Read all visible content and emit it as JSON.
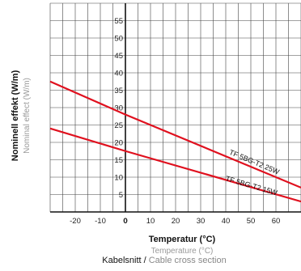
{
  "chart_data": {
    "type": "line",
    "xlim": [
      -30,
      70
    ],
    "ylim": [
      0,
      60
    ],
    "x_ticks": [
      -20,
      -10,
      0,
      10,
      20,
      30,
      40,
      50,
      60
    ],
    "y_ticks": [
      5,
      10,
      15,
      20,
      25,
      30,
      35,
      40,
      45,
      50,
      55
    ],
    "grid": true,
    "xlabel": "Temperatur (°C)",
    "xlabel_secondary": "Temperature (°C)",
    "ylabel": "Nominell effekt (W/m)",
    "ylabel_secondary": "Nominal effect (W/m)",
    "series": [
      {
        "name": "TF 5BG-T2 25W",
        "color": "#e0101e",
        "x": [
          -30,
          0,
          70
        ],
        "y": [
          37.5,
          28,
          7
        ]
      },
      {
        "name": "TF 5BG-T2 15W",
        "color": "#e0101e",
        "x": [
          -30,
          0,
          70
        ],
        "y": [
          24,
          17.5,
          3
        ]
      }
    ]
  },
  "footer": {
    "primary": "Kabelsnitt",
    "separator": " / ",
    "secondary": "Cable cross section"
  }
}
